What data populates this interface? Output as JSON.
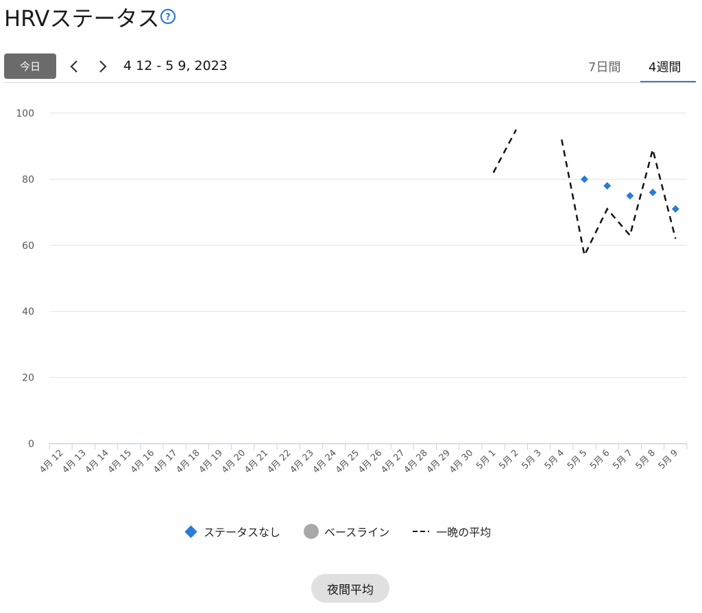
{
  "header": {
    "title": "HRVステータス",
    "today_label": "今日",
    "date_range": "4 12 - 5 9, 2023",
    "tabs": [
      {
        "label": "7日間",
        "active": false
      },
      {
        "label": "4週間",
        "active": true
      }
    ]
  },
  "legend": {
    "items": [
      {
        "label": "ステータスなし",
        "icon": "diamond",
        "color": "#2a7bd4"
      },
      {
        "label": "ベースライン",
        "icon": "circle",
        "color": "#a8a8a8"
      },
      {
        "label": "一晩の平均",
        "icon": "dash",
        "color": "#111111"
      }
    ]
  },
  "footer": {
    "button_label": "夜間平均"
  },
  "chart_data": {
    "type": "line",
    "categories": [
      "4月 12",
      "4月 13",
      "4月 14",
      "4月 15",
      "4月 16",
      "4月 17",
      "4月 18",
      "4月 19",
      "4月 20",
      "4月 21",
      "4月 22",
      "4月 23",
      "4月 24",
      "4月 25",
      "4月 26",
      "4月 27",
      "4月 28",
      "4月 29",
      "4月 30",
      "5月 1",
      "5月 2",
      "5月 3",
      "5月 4",
      "5月 5",
      "5月 6",
      "5月 7",
      "5月 8",
      "5月 9"
    ],
    "ylim": [
      0,
      100
    ],
    "yticks": [
      0,
      20,
      40,
      60,
      80,
      100
    ],
    "grid": true,
    "legend_position": "bottom",
    "series": [
      {
        "name": "ステータスなし",
        "style": "diamond",
        "color": "#2a7bd4",
        "values": [
          null,
          null,
          null,
          null,
          null,
          null,
          null,
          null,
          null,
          null,
          null,
          null,
          null,
          null,
          null,
          null,
          null,
          null,
          null,
          null,
          null,
          null,
          null,
          80,
          78,
          75,
          76,
          71
        ]
      },
      {
        "name": "一晩の平均",
        "style": "dashed",
        "color": "#111111",
        "values": [
          null,
          null,
          null,
          null,
          null,
          null,
          null,
          null,
          null,
          null,
          null,
          null,
          null,
          null,
          null,
          null,
          null,
          null,
          null,
          82,
          95,
          null,
          92,
          57,
          71,
          63,
          89,
          62
        ]
      }
    ]
  }
}
